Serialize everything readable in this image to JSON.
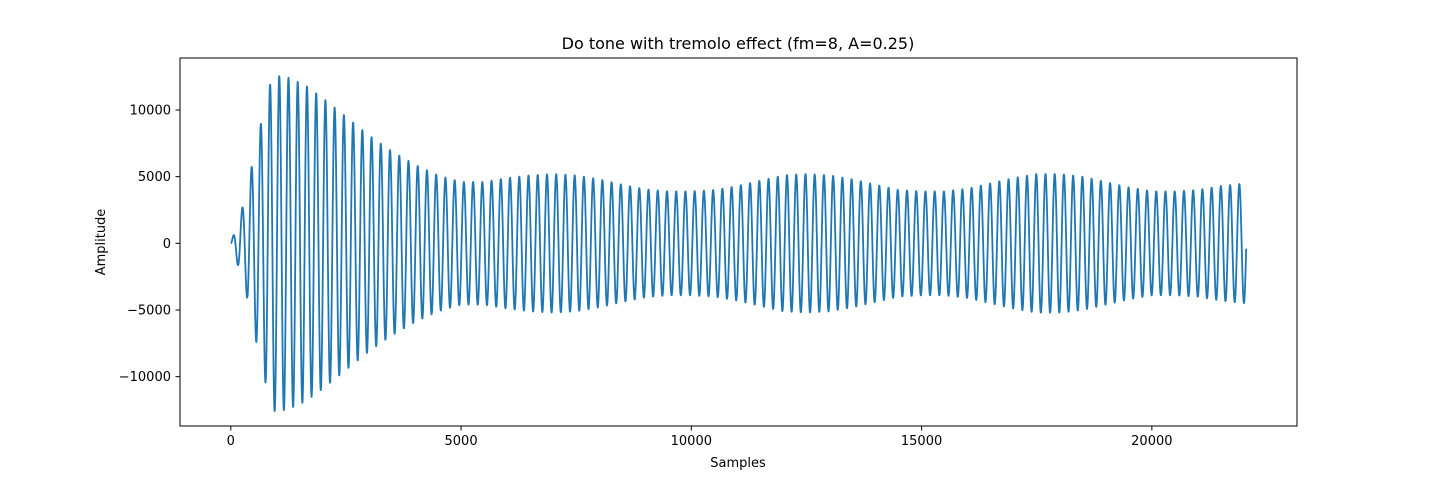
{
  "chart_data": {
    "type": "line",
    "title": "Do tone with tremolo effect (fm=8, A=0.25)",
    "xlabel": "Samples",
    "ylabel": "Amplitude",
    "xlim": [
      -1103,
      23152
    ],
    "ylim": [
      -13700,
      13900
    ],
    "xticks": [
      0,
      5000,
      10000,
      15000,
      20000
    ],
    "xtick_labels": [
      "0",
      "5000",
      "10000",
      "15000",
      "20000"
    ],
    "yticks": [
      -10000,
      -5000,
      0,
      5000,
      10000
    ],
    "ytick_labels": [
      "−10000",
      "−5000",
      "0",
      "5000",
      "10000"
    ],
    "grid": false,
    "series": [
      {
        "color": "#1f77b4",
        "cycles": 110,
        "n_samples": 22050,
        "final_value": -400,
        "envelope_x": [
          0,
          300,
          600,
          900,
          1200,
          1600,
          2000,
          2500,
          3000,
          3500,
          4000,
          4500,
          5000,
          5500,
          6000,
          6500,
          7000,
          7500,
          8000,
          8500,
          9000,
          9500,
          10000,
          10500,
          11000,
          11500,
          12000,
          12500,
          13000,
          13500,
          14000,
          14500,
          15000,
          15500,
          16000,
          16500,
          17000,
          17500,
          18000,
          18500,
          19000,
          19500,
          20000,
          20500,
          21000,
          21500,
          22050
        ],
        "envelope_y": [
          0,
          3200,
          8200,
          12600,
          12500,
          11900,
          10900,
          9500,
          8100,
          6900,
          5900,
          5100,
          4600,
          4600,
          4900,
          5100,
          5200,
          5100,
          4800,
          4400,
          4050,
          3900,
          3900,
          4000,
          4300,
          4700,
          5100,
          5200,
          5100,
          4800,
          4400,
          4000,
          3900,
          3900,
          4100,
          4500,
          4900,
          5200,
          5200,
          5000,
          4600,
          4200,
          3900,
          3900,
          4000,
          4300,
          4500
        ]
      }
    ]
  }
}
